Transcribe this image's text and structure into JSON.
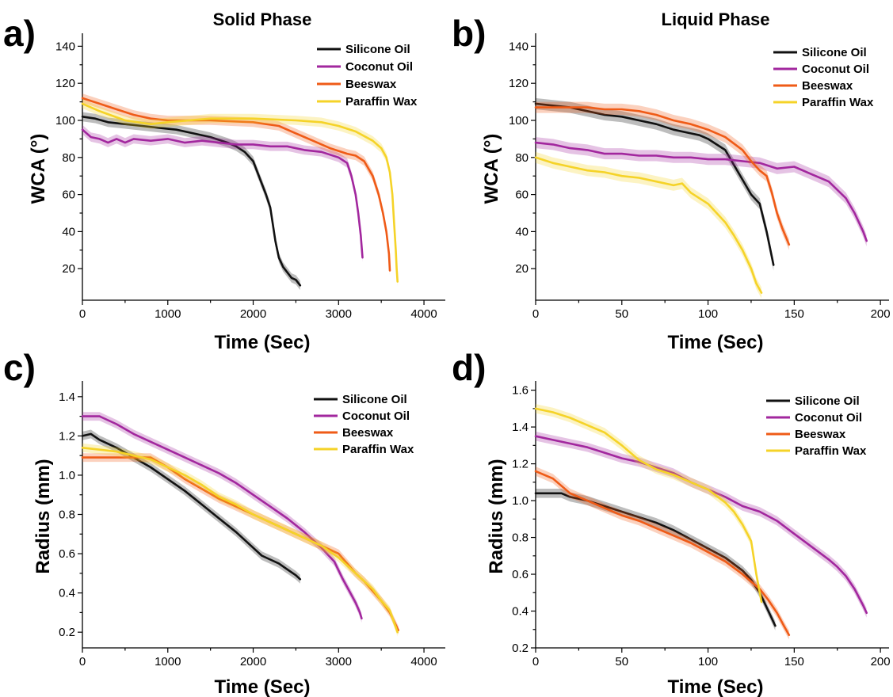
{
  "figure": {
    "colors": {
      "Silicone Oil": "#111111",
      "Coconut Oil": "#a2279e",
      "Beeswax": "#ef5b17",
      "Paraffin Wax": "#f5d328"
    }
  },
  "chart_data": [
    {
      "id": "a",
      "panel_letter": "a)",
      "type": "line",
      "title": "Solid Phase",
      "xlabel": "Time (Sec)",
      "ylabel": "WCA (°)",
      "xlim": [
        0,
        4250
      ],
      "ylim": [
        3,
        147
      ],
      "xticks": [
        0,
        1000,
        2000,
        3000,
        4000
      ],
      "yticks": [
        20,
        40,
        60,
        80,
        100,
        120,
        140
      ],
      "legend_position": "top-right",
      "band": 2.5,
      "series": [
        {
          "name": "Silicone Oil",
          "x": [
            0,
            150,
            300,
            500,
            700,
            900,
            1100,
            1300,
            1500,
            1700,
            1800,
            1900,
            2000,
            2050,
            2100,
            2150,
            2200,
            2230,
            2260,
            2300,
            2350,
            2400,
            2450,
            2500,
            2550
          ],
          "y": [
            102,
            101,
            99,
            98,
            97,
            96,
            95,
            93,
            91,
            88,
            86,
            83,
            78,
            72,
            66,
            60,
            53,
            44,
            35,
            26,
            21,
            18,
            15,
            14,
            11
          ]
        },
        {
          "name": "Coconut Oil",
          "x": [
            0,
            100,
            200,
            300,
            400,
            500,
            600,
            800,
            1000,
            1200,
            1400,
            1600,
            1800,
            2000,
            2200,
            2400,
            2600,
            2800,
            3000,
            3100,
            3150,
            3200,
            3230,
            3260,
            3280
          ],
          "y": [
            95,
            91,
            90,
            88,
            90,
            88,
            90,
            89,
            90,
            88,
            89,
            88,
            87,
            87,
            86,
            86,
            84,
            83,
            80,
            77,
            70,
            60,
            50,
            38,
            26
          ]
        },
        {
          "name": "Beeswax",
          "x": [
            0,
            200,
            400,
            600,
            800,
            1000,
            1500,
            2000,
            2300,
            2500,
            2700,
            2900,
            3100,
            3200,
            3300,
            3400,
            3470,
            3520,
            3560,
            3590,
            3600
          ],
          "y": [
            112,
            109,
            106,
            103,
            101,
            100,
            100,
            99,
            97,
            93,
            89,
            85,
            82,
            81,
            78,
            70,
            60,
            50,
            40,
            28,
            19
          ]
        },
        {
          "name": "Paraffin Wax",
          "x": [
            0,
            200,
            500,
            800,
            1000,
            1500,
            2000,
            2500,
            2800,
            3000,
            3200,
            3400,
            3500,
            3560,
            3600,
            3630,
            3650,
            3670,
            3680,
            3690
          ],
          "y": [
            109,
            105,
            100,
            98,
            99,
            101,
            101,
            100,
            99,
            97,
            94,
            89,
            85,
            80,
            72,
            60,
            45,
            30,
            20,
            13
          ]
        }
      ]
    },
    {
      "id": "b",
      "panel_letter": "b)",
      "type": "line",
      "title": "Liquid Phase",
      "xlabel": "Time (Sec)",
      "ylabel": "WCA (°)",
      "xlim": [
        0,
        205
      ],
      "ylim": [
        3,
        147
      ],
      "xticks": [
        0,
        50,
        100,
        150,
        200
      ],
      "yticks": [
        20,
        40,
        60,
        80,
        100,
        120,
        140
      ],
      "legend_position": "top-right",
      "band": 3,
      "series": [
        {
          "name": "Silicone Oil",
          "x": [
            0,
            10,
            20,
            30,
            40,
            50,
            60,
            70,
            80,
            90,
            95,
            100,
            105,
            110,
            115,
            120,
            125,
            130,
            134,
            138
          ],
          "y": [
            109,
            108,
            107,
            105,
            103,
            102,
            100,
            98,
            95,
            93,
            92,
            90,
            87,
            84,
            76,
            68,
            60,
            55,
            40,
            22
          ]
        },
        {
          "name": "Coconut Oil",
          "x": [
            0,
            10,
            20,
            30,
            40,
            50,
            60,
            70,
            80,
            90,
            100,
            110,
            120,
            130,
            140,
            150,
            160,
            170,
            180,
            185,
            190,
            192
          ],
          "y": [
            88,
            87,
            85,
            84,
            82,
            82,
            81,
            81,
            80,
            80,
            79,
            79,
            78,
            77,
            74,
            75,
            71,
            67,
            58,
            50,
            40,
            35
          ]
        },
        {
          "name": "Beeswax",
          "x": [
            0,
            10,
            20,
            30,
            40,
            50,
            60,
            70,
            80,
            90,
            100,
            110,
            120,
            125,
            130,
            134,
            137,
            140,
            143,
            147
          ],
          "y": [
            107,
            107,
            107,
            107,
            106,
            106,
            105,
            103,
            100,
            98,
            95,
            91,
            84,
            78,
            73,
            70,
            61,
            50,
            42,
            33
          ]
        },
        {
          "name": "Paraffin Wax",
          "x": [
            0,
            10,
            20,
            30,
            40,
            50,
            60,
            70,
            80,
            85,
            90,
            100,
            110,
            115,
            120,
            125,
            128,
            131
          ],
          "y": [
            80,
            77,
            75,
            73,
            72,
            70,
            69,
            67,
            65,
            66,
            61,
            55,
            45,
            38,
            30,
            20,
            12,
            7
          ]
        }
      ]
    },
    {
      "id": "c",
      "panel_letter": "c)",
      "type": "line",
      "title": "",
      "xlabel": "Time (Sec)",
      "ylabel": "Radius (mm)",
      "xlim": [
        0,
        4250
      ],
      "ylim": [
        0.12,
        1.48
      ],
      "xticks": [
        0,
        1000,
        2000,
        3000,
        4000
      ],
      "yticks": [
        0.2,
        0.4,
        0.6,
        0.8,
        1.0,
        1.2,
        1.4
      ],
      "legend_position": "top-right",
      "band": 0.022,
      "series": [
        {
          "name": "Silicone Oil",
          "x": [
            0,
            100,
            200,
            400,
            600,
            800,
            1000,
            1200,
            1400,
            1600,
            1800,
            2000,
            2100,
            2200,
            2300,
            2400,
            2500,
            2550
          ],
          "y": [
            1.2,
            1.21,
            1.18,
            1.14,
            1.09,
            1.04,
            0.98,
            0.92,
            0.85,
            0.78,
            0.71,
            0.63,
            0.59,
            0.57,
            0.55,
            0.52,
            0.49,
            0.47
          ]
        },
        {
          "name": "Coconut Oil",
          "x": [
            0,
            200,
            400,
            600,
            800,
            1000,
            1200,
            1400,
            1600,
            1800,
            1900,
            2000,
            2200,
            2400,
            2600,
            2800,
            2950,
            3050,
            3150,
            3200,
            3250,
            3270
          ],
          "y": [
            1.3,
            1.3,
            1.26,
            1.21,
            1.17,
            1.13,
            1.09,
            1.05,
            1.01,
            0.96,
            0.93,
            0.9,
            0.84,
            0.78,
            0.71,
            0.63,
            0.56,
            0.47,
            0.39,
            0.35,
            0.3,
            0.27
          ]
        },
        {
          "name": "Beeswax",
          "x": [
            0,
            200,
            400,
            600,
            800,
            1000,
            1200,
            1400,
            1600,
            1800,
            2000,
            2200,
            2400,
            2600,
            2800,
            3000,
            3100,
            3200,
            3300,
            3400,
            3500,
            3600,
            3700
          ],
          "y": [
            1.09,
            1.09,
            1.09,
            1.09,
            1.09,
            1.04,
            0.98,
            0.93,
            0.88,
            0.84,
            0.8,
            0.76,
            0.72,
            0.68,
            0.64,
            0.6,
            0.55,
            0.5,
            0.46,
            0.41,
            0.36,
            0.3,
            0.21
          ]
        },
        {
          "name": "Paraffin Wax",
          "x": [
            0,
            200,
            400,
            600,
            800,
            1000,
            1200,
            1400,
            1600,
            1800,
            2000,
            2200,
            2400,
            2600,
            2800,
            3000,
            3200,
            3400,
            3500,
            3600,
            3650,
            3690
          ],
          "y": [
            1.14,
            1.13,
            1.12,
            1.1,
            1.08,
            1.04,
            1.0,
            0.95,
            0.89,
            0.85,
            0.8,
            0.76,
            0.72,
            0.68,
            0.64,
            0.58,
            0.5,
            0.42,
            0.36,
            0.31,
            0.25,
            0.2
          ]
        }
      ]
    },
    {
      "id": "d",
      "panel_letter": "d)",
      "type": "line",
      "title": "",
      "xlabel": "Time (Sec)",
      "ylabel": "Radius (mm)",
      "xlim": [
        0,
        205
      ],
      "ylim": [
        0.2,
        1.65
      ],
      "xticks": [
        0,
        50,
        100,
        150,
        200
      ],
      "yticks": [
        0.2,
        0.4,
        0.6,
        0.8,
        1.0,
        1.2,
        1.4,
        1.6
      ],
      "legend_position": "top-right",
      "band": 0.025,
      "series": [
        {
          "name": "Silicone Oil",
          "x": [
            0,
            10,
            15,
            20,
            30,
            40,
            50,
            60,
            70,
            80,
            90,
            100,
            110,
            120,
            125,
            130,
            135,
            139
          ],
          "y": [
            1.04,
            1.04,
            1.04,
            1.02,
            1.0,
            0.97,
            0.94,
            0.91,
            0.88,
            0.84,
            0.79,
            0.74,
            0.69,
            0.62,
            0.57,
            0.5,
            0.4,
            0.32
          ]
        },
        {
          "name": "Coconut Oil",
          "x": [
            0,
            10,
            20,
            30,
            40,
            50,
            60,
            70,
            80,
            90,
            100,
            110,
            120,
            130,
            140,
            150,
            160,
            170,
            175,
            180,
            185,
            190,
            192
          ],
          "y": [
            1.35,
            1.33,
            1.31,
            1.29,
            1.26,
            1.23,
            1.21,
            1.18,
            1.15,
            1.1,
            1.06,
            1.02,
            0.97,
            0.94,
            0.89,
            0.82,
            0.75,
            0.68,
            0.64,
            0.59,
            0.52,
            0.43,
            0.39
          ]
        },
        {
          "name": "Beeswax",
          "x": [
            0,
            10,
            20,
            30,
            40,
            50,
            60,
            70,
            80,
            90,
            100,
            110,
            120,
            130,
            135,
            140,
            144,
            147
          ],
          "y": [
            1.16,
            1.12,
            1.04,
            1.0,
            0.96,
            0.92,
            0.89,
            0.85,
            0.81,
            0.77,
            0.72,
            0.67,
            0.6,
            0.52,
            0.46,
            0.39,
            0.32,
            0.27
          ]
        },
        {
          "name": "Paraffin Wax",
          "x": [
            0,
            10,
            20,
            30,
            40,
            50,
            60,
            70,
            80,
            90,
            100,
            110,
            115,
            120,
            125,
            128,
            131
          ],
          "y": [
            1.5,
            1.48,
            1.45,
            1.41,
            1.37,
            1.3,
            1.22,
            1.17,
            1.14,
            1.1,
            1.06,
            0.99,
            0.94,
            0.87,
            0.78,
            0.6,
            0.45
          ]
        }
      ]
    }
  ]
}
